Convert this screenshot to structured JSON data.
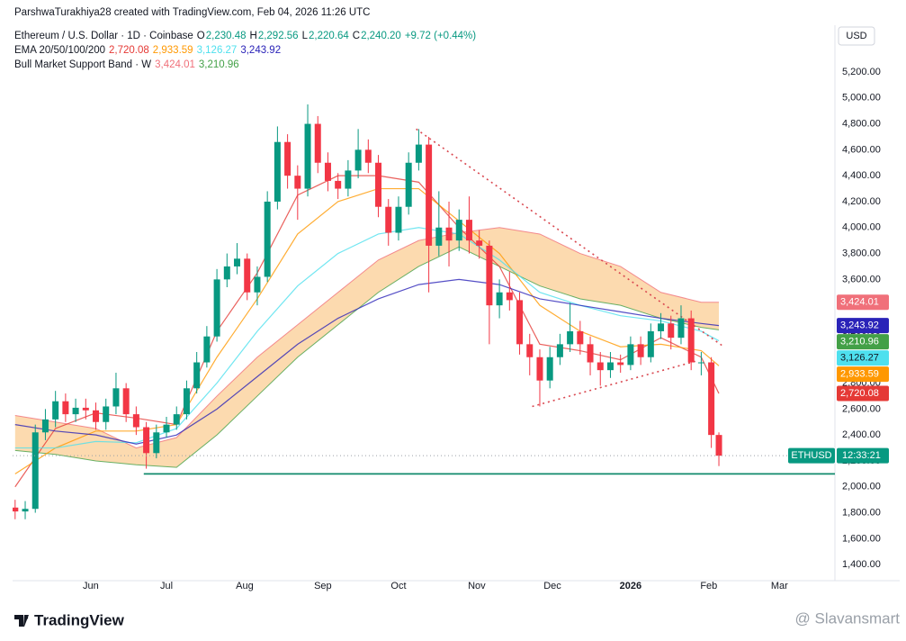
{
  "header": {
    "credit": "ParshwaTurakhiya28 created with TradingView.com, Feb 04, 2026 11:26 UTC",
    "symbol": "Ethereum / U.S. Dollar · 1D · Coinbase",
    "ohlc": [
      {
        "label": "O",
        "value": "2,230.48"
      },
      {
        "label": "H",
        "value": "2,292.56"
      },
      {
        "label": "L",
        "value": "2,220.64"
      },
      {
        "label": "C",
        "value": "2,240.20"
      }
    ],
    "change": "+9.72 (+0.44%)"
  },
  "chart_data": {
    "type": "candlestick",
    "currency": "USD",
    "xlim": [
      -31,
      295
    ],
    "ylim": [
      1276,
      5547
    ],
    "grid": false,
    "xticks": [
      {
        "value": 0,
        "label": "Jun"
      },
      {
        "value": 30,
        "label": "Jul"
      },
      {
        "value": 61,
        "label": "Aug"
      },
      {
        "value": 92,
        "label": "Sep"
      },
      {
        "value": 122,
        "label": "Oct"
      },
      {
        "value": 153,
        "label": "Nov"
      },
      {
        "value": 183,
        "label": "Dec"
      },
      {
        "value": 214,
        "label": "2026"
      },
      {
        "value": 245,
        "label": "Feb"
      },
      {
        "value": 273,
        "label": "Mar"
      }
    ],
    "yticks": [
      {
        "value": 1400,
        "label": "1,400.00"
      },
      {
        "value": 1600,
        "label": "1,600.00"
      },
      {
        "value": 1800,
        "label": "1,800.00"
      },
      {
        "value": 2000,
        "label": "2,000.00"
      },
      {
        "value": 2200,
        "label": "2,200.00"
      },
      {
        "value": 2400,
        "label": "2,400.00"
      },
      {
        "value": 2600,
        "label": "2,600.00"
      },
      {
        "value": 2800,
        "label": "2,800.00"
      },
      {
        "value": 3000,
        "label": "3,000.00"
      },
      {
        "value": 3200,
        "label": "3,200.00"
      },
      {
        "value": 3400,
        "label": "3,400.00"
      },
      {
        "value": 3600,
        "label": "3,600.00"
      },
      {
        "value": 3800,
        "label": "3,800.00"
      },
      {
        "value": 4000,
        "label": "4,000.00"
      },
      {
        "value": 4200,
        "label": "4,200.00"
      },
      {
        "value": 4400,
        "label": "4,400.00"
      },
      {
        "value": 4600,
        "label": "4,600.00"
      },
      {
        "value": 4800,
        "label": "4,800.00"
      },
      {
        "value": 5000,
        "label": "5,000.00"
      },
      {
        "value": 5200,
        "label": "5,200.00"
      }
    ],
    "up_color": "#089981",
    "down_color": "#f23645",
    "candles": {
      "x": [
        -30,
        -26,
        -22,
        -18,
        -14,
        -10,
        -6,
        -2,
        2,
        6,
        10,
        14,
        18,
        22,
        26,
        30,
        34,
        38,
        42,
        46,
        50,
        54,
        58,
        62,
        66,
        70,
        74,
        78,
        82,
        86,
        90,
        94,
        98,
        102,
        106,
        110,
        114,
        118,
        122,
        126,
        130,
        134,
        138,
        142,
        146,
        150,
        154,
        158,
        162,
        166,
        170,
        174,
        178,
        182,
        186,
        190,
        194,
        198,
        202,
        206,
        210,
        214,
        218,
        222,
        226,
        230,
        234,
        238,
        242,
        246,
        249
      ],
      "open": [
        1840,
        1810,
        1830,
        2420,
        2520,
        2660,
        2560,
        2610,
        2590,
        2500,
        2620,
        2760,
        2560,
        2460,
        2260,
        2420,
        2480,
        2560,
        2760,
        2960,
        3160,
        3600,
        3700,
        3760,
        3500,
        3620,
        4200,
        4660,
        4400,
        4300,
        4800,
        4500,
        4360,
        4300,
        4440,
        4600,
        4500,
        4160,
        3960,
        4160,
        4500,
        4640,
        3860,
        4000,
        3900,
        4060,
        3900,
        3860,
        3400,
        3500,
        3440,
        3100,
        3000,
        2820,
        3000,
        3100,
        3200,
        3100,
        2960,
        2900,
        2960,
        2940,
        3100,
        3000,
        3200,
        3260,
        3150,
        3300,
        2960,
        2960,
        2400
      ],
      "high": [
        1900,
        1890,
        2480,
        2600,
        2740,
        2720,
        2680,
        2680,
        2650,
        2680,
        2880,
        2800,
        2620,
        2500,
        2480,
        2540,
        2620,
        2820,
        3040,
        3240,
        3680,
        3800,
        3880,
        3800,
        3700,
        4280,
        4780,
        4720,
        4480,
        4950,
        4860,
        4580,
        4420,
        4520,
        4760,
        4680,
        4560,
        4220,
        4240,
        4580,
        4760,
        4700,
        4280,
        4200,
        4140,
        4240,
        3980,
        3900,
        3600,
        3660,
        3500,
        3180,
        3060,
        3080,
        3180,
        3420,
        3280,
        3160,
        3040,
        3040,
        3020,
        3160,
        3160,
        3260,
        3340,
        3320,
        3400,
        3360,
        3040,
        3000,
        2420
      ],
      "low": [
        1750,
        1750,
        1800,
        2360,
        2460,
        2500,
        2500,
        2520,
        2440,
        2440,
        2560,
        2500,
        2400,
        2140,
        2220,
        2380,
        2440,
        2520,
        2720,
        2920,
        3120,
        3540,
        3640,
        3440,
        3400,
        3580,
        4140,
        4300,
        4060,
        4240,
        4420,
        4280,
        4220,
        4240,
        4380,
        4420,
        4080,
        3860,
        3900,
        4100,
        4440,
        3500,
        3780,
        3700,
        3820,
        3800,
        3760,
        3100,
        3300,
        3360,
        3020,
        2860,
        2620,
        2760,
        2940,
        3040,
        3020,
        2860,
        2780,
        2840,
        2880,
        2900,
        2940,
        2960,
        3140,
        3060,
        3100,
        2900,
        2860,
        2300,
        2160
      ],
      "close": [
        1810,
        1830,
        2420,
        2520,
        2660,
        2560,
        2610,
        2590,
        2500,
        2620,
        2760,
        2560,
        2460,
        2260,
        2420,
        2480,
        2560,
        2760,
        2960,
        3160,
        3600,
        3700,
        3760,
        3500,
        3620,
        4200,
        4660,
        4400,
        4300,
        4800,
        4500,
        4360,
        4300,
        4440,
        4600,
        4500,
        4160,
        3960,
        4160,
        4500,
        4640,
        3860,
        4000,
        3900,
        4060,
        3900,
        3860,
        3400,
        3500,
        3440,
        3100,
        3000,
        2820,
        3000,
        3100,
        3200,
        3100,
        2960,
        2900,
        2960,
        2940,
        3100,
        3000,
        3200,
        3260,
        3150,
        3300,
        2960,
        2960,
        2400,
        2240
      ]
    },
    "line_x": [
      -30,
      -14,
      2,
      18,
      34,
      50,
      66,
      82,
      98,
      114,
      130,
      146,
      162,
      178,
      194,
      210,
      226,
      242,
      249
    ],
    "band": {
      "name": "Bull Market Support Band · W",
      "fill": "#fcd3a1",
      "series": [
        {
          "color": "#f0707a",
          "values": [
            2550,
            2500,
            2450,
            2300,
            2380,
            2700,
            3000,
            3250,
            3500,
            3750,
            3900,
            3960,
            4000,
            3950,
            3800,
            3700,
            3500,
            3424.01,
            3424.01
          ],
          "last_label": "3,424.01",
          "tag_text": "#ffffff"
        },
        {
          "color": "#43a047",
          "values": [
            2280,
            2250,
            2200,
            2170,
            2150,
            2400,
            2700,
            3000,
            3250,
            3500,
            3700,
            3850,
            3700,
            3550,
            3450,
            3400,
            3300,
            3230,
            3210.96
          ],
          "last_label": "3,210.96",
          "tag_text": "#ffffff"
        }
      ]
    },
    "ema": {
      "name": "EMA 20/50/100/200",
      "series": [
        {
          "color": "#e53935",
          "values": [
            2000,
            2450,
            2570,
            2530,
            2480,
            3200,
            3650,
            4250,
            4400,
            4400,
            4350,
            4000,
            3700,
            3100,
            3050,
            2980,
            3150,
            3000,
            2720.08
          ],
          "last_label": "2,720.08",
          "tag_text": "#ffffff"
        },
        {
          "color": "#ff9800",
          "values": [
            2100,
            2300,
            2430,
            2430,
            2480,
            3000,
            3450,
            3950,
            4200,
            4300,
            4300,
            4050,
            3800,
            3400,
            3200,
            3080,
            3100,
            3050,
            2933.59
          ],
          "last_label": "2,933.59",
          "tag_text": "#ffffff"
        },
        {
          "color": "#4ee0ee",
          "values": [
            2300,
            2300,
            2350,
            2340,
            2450,
            2800,
            3200,
            3550,
            3800,
            3950,
            4000,
            3950,
            3750,
            3500,
            3400,
            3320,
            3280,
            3200,
            3126.27
          ],
          "last_label": "3,126.27",
          "tag_text": "#131722"
        },
        {
          "color": "#2a23b8",
          "values": [
            2480,
            2430,
            2400,
            2330,
            2400,
            2600,
            2850,
            3100,
            3300,
            3450,
            3560,
            3600,
            3560,
            3450,
            3400,
            3350,
            3300,
            3260,
            3243.92
          ],
          "last_label": "3,243.92",
          "tag_text": "#ffffff"
        }
      ]
    },
    "drawings": [
      {
        "x": [
          129,
          251
        ],
        "y": [
          4760,
          3080
        ],
        "color": "#d9474f",
        "dashed": true
      },
      {
        "x": [
          175,
          240
        ],
        "y": [
          2620,
          2970
        ],
        "color": "#d9474f",
        "dashed": true
      },
      {
        "x": [
          21,
          295
        ],
        "y": [
          2100,
          2100
        ],
        "color": "#118a6c",
        "dashed": false
      }
    ],
    "last_price": {
      "value": 2240.2,
      "symbol": "ETHUSD",
      "countdown": "12:33:21",
      "color": "#089981"
    }
  },
  "footer": {
    "brand": "TradingView",
    "watermark": "@ Slavansmart"
  }
}
